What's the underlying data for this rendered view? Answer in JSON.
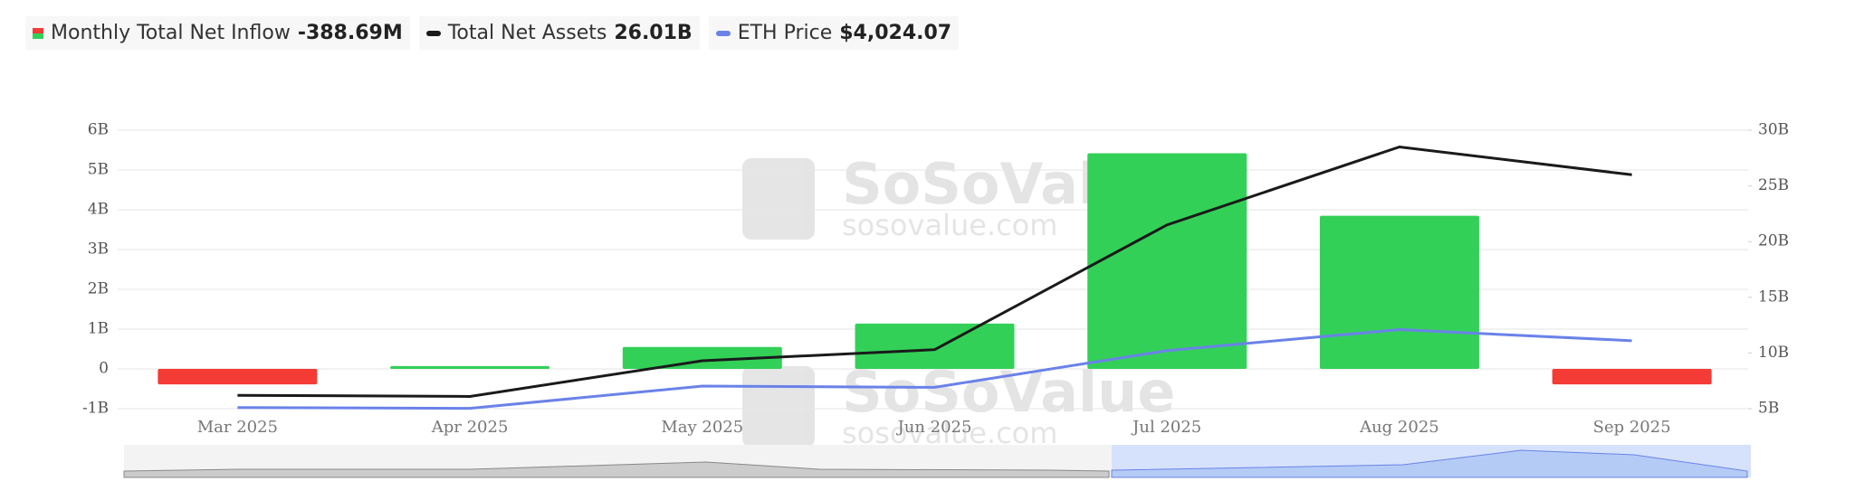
{
  "chart_data": {
    "type": "bar",
    "watermark": "SoSoValue",
    "watermark_url": "sosovalue.com",
    "categories": [
      "Mar 2025",
      "Apr 2025",
      "May 2025",
      "Jun 2025",
      "Jul 2025",
      "Aug 2025",
      "Sep 2025"
    ],
    "series": [
      {
        "name": "Monthly Total Net Inflow",
        "latest": "-388.69M",
        "type": "bar",
        "color": "#33d058",
        "negative_color": "#f43b35",
        "axis": "y",
        "values": [
          -0.39,
          0.07,
          0.55,
          1.14,
          5.42,
          3.85,
          -0.39
        ]
      },
      {
        "name": "Total Net Assets",
        "latest": "26.01B",
        "type": "line",
        "color": "#1a1a1a",
        "axis": "y2",
        "values": [
          6.2,
          6.1,
          9.3,
          10.3,
          21.5,
          28.5,
          26.0
        ]
      },
      {
        "name": "ETH Price",
        "latest": "$4,024.07",
        "type": "line",
        "color": "#6a82e8",
        "axis": "y3",
        "values": [
          1822,
          1793,
          2528,
          2486,
          3698,
          4390,
          4024.07
        ]
      }
    ],
    "ylim": [
      -1,
      6
    ],
    "yticks": [
      {
        "value": -1,
        "label": "-1B"
      },
      0,
      {
        "value": 1,
        "label": "1B"
      },
      {
        "value": 2,
        "label": "2B"
      },
      {
        "value": 3,
        "label": "3B"
      },
      {
        "value": 4,
        "label": "4B"
      },
      {
        "value": 5,
        "label": "5B"
      },
      {
        "value": 6,
        "label": "6B"
      }
    ],
    "y2lim": [
      5,
      30
    ],
    "y2ticks": [
      {
        "value": 5,
        "label": "5B"
      },
      {
        "value": 10,
        "label": "10B"
      },
      {
        "value": 15,
        "label": "15B"
      },
      {
        "value": 20,
        "label": "20B"
      },
      {
        "value": 25,
        "label": "25B"
      },
      {
        "value": 30,
        "label": "30B"
      }
    ],
    "y3lim": [
      1783,
      10964
    ],
    "grid": true
  }
}
